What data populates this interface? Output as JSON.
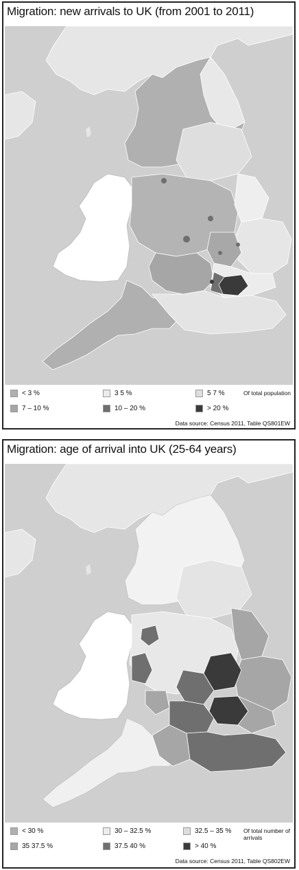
{
  "panel1": {
    "title": "Migration: new arrivals to UK (from 2001 to 2011)",
    "legend": [
      {
        "label": "< 3 %",
        "color": "#b0b0b0"
      },
      {
        "label": "3   5 %",
        "color": "#ececec"
      },
      {
        "label": "5   7 %",
        "color": "#dedede"
      },
      {
        "label": "7 – 10 %",
        "color": "#a6a6a6"
      },
      {
        "label": "10 – 20 %",
        "color": "#6f6f6f"
      },
      {
        "label": "> 20 %",
        "color": "#3a3a3a"
      }
    ],
    "legend_note": "Of total population",
    "source": "Data source: Census 2011, Table QS801EW"
  },
  "panel2": {
    "title": "Migration: age of arrival into UK (25-64 years)",
    "legend": [
      {
        "label": "< 30 %",
        "color": "#b0b0b0"
      },
      {
        "label": "30 – 32.5 %",
        "color": "#ececec"
      },
      {
        "label": "32.5 – 35 %",
        "color": "#dedede"
      },
      {
        "label": "35   37.5 %",
        "color": "#a6a6a6"
      },
      {
        "label": "37.5   40 %",
        "color": "#6f6f6f"
      },
      {
        "label": "> 40 %",
        "color": "#3a3a3a"
      }
    ],
    "legend_note": "Of total number of arrivals",
    "source": "Data source: Census 2011, Table QS802EW"
  },
  "colors": {
    "sea": "#cfcfcf",
    "wales": "#ffffff",
    "scotland": "#e6e6e6",
    "ireland": "#e6e6e6"
  }
}
